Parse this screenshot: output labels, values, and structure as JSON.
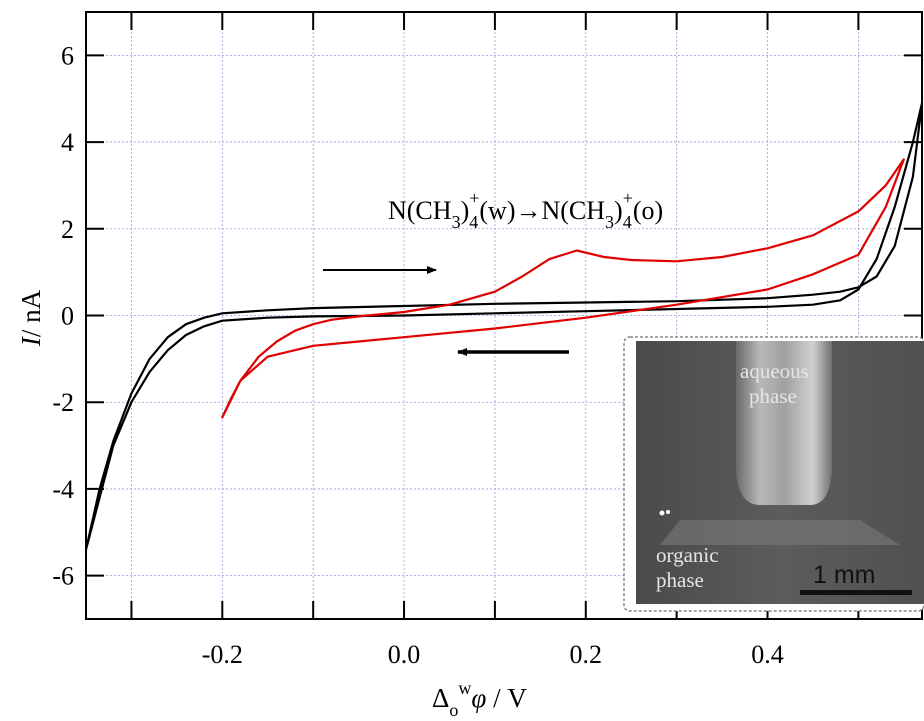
{
  "chart_data": {
    "type": "line",
    "title": "",
    "xlabel": {
      "main": "Δ",
      "sub": "o",
      "sup": "w",
      "italic": "φ",
      "unit": " / V"
    },
    "ylabel": {
      "italic": "I",
      "unit": "/ nA"
    },
    "xlim": [
      -0.35,
      0.57
    ],
    "ylim": [
      -7,
      7
    ],
    "x_ticks": [
      -0.2,
      0.0,
      0.2,
      0.4
    ],
    "x_tick_labels": [
      "-0.2",
      "0.0",
      "0.2",
      "0.4"
    ],
    "y_ticks": [
      -6,
      -4,
      -2,
      0,
      2,
      4,
      6
    ],
    "y_tick_labels": [
      "-6",
      "-4",
      "-2",
      "0",
      "2",
      "4",
      "6"
    ],
    "grid": true,
    "annotation": {
      "parts": [
        "N(CH",
        "3",
        ")",
        "4",
        "+",
        "(w)→N(CH",
        "3",
        ")",
        "4",
        "+",
        "(o)"
      ]
    },
    "series": [
      {
        "color": "#000000",
        "x": [
          -0.35,
          -0.335,
          -0.32,
          -0.3,
          -0.28,
          -0.26,
          -0.24,
          -0.22,
          -0.2,
          -0.15,
          -0.1,
          0.0,
          0.1,
          0.2,
          0.3,
          0.4,
          0.45,
          0.48,
          0.5,
          0.52,
          0.54,
          0.56,
          0.57,
          0.56,
          0.54,
          0.52,
          0.5,
          0.48,
          0.45,
          0.4,
          0.3,
          0.2,
          0.1,
          0.0,
          -0.1,
          -0.15,
          -0.2,
          -0.22,
          -0.24,
          -0.26,
          -0.28,
          -0.3,
          -0.32,
          -0.335,
          -0.35
        ],
        "y": [
          -5.4,
          -4.2,
          -3.0,
          -2.0,
          -1.3,
          -0.8,
          -0.45,
          -0.25,
          -0.12,
          -0.05,
          -0.02,
          0.0,
          0.05,
          0.1,
          0.15,
          0.2,
          0.25,
          0.35,
          0.6,
          1.3,
          2.5,
          4.0,
          4.9,
          3.2,
          1.6,
          0.9,
          0.65,
          0.55,
          0.48,
          0.4,
          0.33,
          0.3,
          0.27,
          0.22,
          0.17,
          0.12,
          0.05,
          -0.05,
          -0.2,
          -0.5,
          -1.0,
          -1.8,
          -2.9,
          -4.0,
          -5.4
        ]
      },
      {
        "color": "#e00000",
        "x": [
          -0.2,
          -0.19,
          -0.18,
          -0.16,
          -0.14,
          -0.12,
          -0.1,
          -0.08,
          -0.05,
          0.0,
          0.05,
          0.1,
          0.13,
          0.16,
          0.19,
          0.22,
          0.25,
          0.3,
          0.35,
          0.4,
          0.45,
          0.5,
          0.53,
          0.55,
          0.53,
          0.5,
          0.45,
          0.4,
          0.3,
          0.2,
          0.1,
          0.0,
          -0.05,
          -0.1,
          -0.15,
          -0.18,
          -0.2
        ],
        "y": [
          -2.35,
          -1.9,
          -1.5,
          -0.95,
          -0.6,
          -0.35,
          -0.2,
          -0.1,
          -0.02,
          0.08,
          0.25,
          0.55,
          0.9,
          1.3,
          1.5,
          1.35,
          1.28,
          1.25,
          1.35,
          1.55,
          1.85,
          2.4,
          3.0,
          3.6,
          2.5,
          1.4,
          0.95,
          0.6,
          0.25,
          -0.05,
          -0.3,
          -0.5,
          -0.6,
          -0.7,
          -0.95,
          -1.5,
          -2.35
        ]
      }
    ]
  },
  "inset": {
    "label_top": [
      "aqueous",
      "phase"
    ],
    "label_bottom": [
      "organic",
      "phase"
    ],
    "scale_bar": "1 mm"
  }
}
